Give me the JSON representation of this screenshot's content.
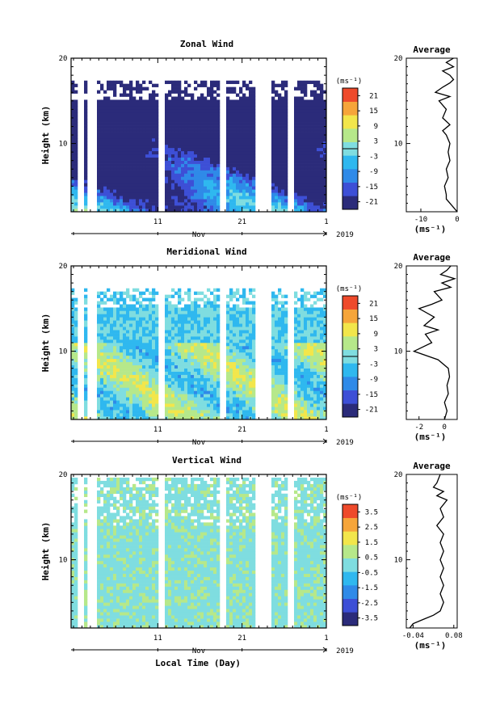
{
  "figure": {
    "xlabel": "Local Time (Day)",
    "month_label": "Nov",
    "year_label": "2019",
    "ylabel": "Height (km)",
    "unit_label": "(ms⁻¹)",
    "avg_title": "Average",
    "avg_xlabel": "(ms⁻¹)"
  },
  "chart_data": [
    {
      "type": "heatmap",
      "title": "Zonal Wind",
      "ylabel": "Height (km)",
      "ylim": [
        2,
        20
      ],
      "yticks": [
        "20",
        "10"
      ],
      "xticks": [
        "11",
        "21",
        "1"
      ],
      "xlabel": "Nov",
      "colorbar": {
        "unit": "(ms⁻¹)",
        "ticks": [
          "21",
          "15",
          "9",
          "3",
          "-3",
          "-9",
          "-15",
          "-21"
        ],
        "range": [
          -24,
          24
        ]
      },
      "colors": [
        "#2b2b7a",
        "#3d4fd6",
        "#2f8ae8",
        "#2fb8ef",
        "#7fdde0",
        "#b6e88a",
        "#f2e64b",
        "#f6a53a",
        "#ee4a2b"
      ],
      "average": {
        "title": "Average",
        "xlabel": "(ms⁻¹)",
        "xticks": [
          "-10",
          "0"
        ],
        "xlim": [
          -14,
          0
        ],
        "profile": [
          [
            0,
            2
          ],
          [
            -1,
            2.5
          ],
          [
            -2,
            3
          ],
          [
            -3,
            3.5
          ],
          [
            -3,
            4
          ],
          [
            -3.5,
            5
          ],
          [
            -2.5,
            6
          ],
          [
            -3,
            7
          ],
          [
            -2,
            8
          ],
          [
            -2.5,
            9
          ],
          [
            -2,
            10
          ],
          [
            -3,
            11
          ],
          [
            -4,
            11.5
          ],
          [
            -2,
            12.2
          ],
          [
            -4,
            13
          ],
          [
            -3,
            14
          ],
          [
            -5,
            15
          ],
          [
            -2,
            15.5
          ],
          [
            -6,
            16
          ],
          [
            -4,
            16.6
          ],
          [
            -2,
            17.1
          ],
          [
            -1,
            17.5
          ],
          [
            -2,
            18
          ],
          [
            -4,
            18.5
          ],
          [
            -1,
            19
          ],
          [
            -3,
            19.5
          ],
          [
            -1,
            20
          ]
        ]
      }
    },
    {
      "type": "heatmap",
      "title": "Meridional Wind",
      "ylabel": "Height (km)",
      "ylim": [
        2,
        20
      ],
      "yticks": [
        "20",
        "10"
      ],
      "xticks": [
        "11",
        "21",
        "1"
      ],
      "xlabel": "Nov",
      "colorbar": {
        "unit": "(ms⁻¹)",
        "ticks": [
          "21",
          "15",
          "9",
          "3",
          "-3",
          "-9",
          "-15",
          "-21"
        ],
        "range": [
          -24,
          24
        ]
      },
      "colors": [
        "#2b2b7a",
        "#3d4fd6",
        "#2f8ae8",
        "#2fb8ef",
        "#7fdde0",
        "#b6e88a",
        "#f2e64b",
        "#f6a53a",
        "#ee4a2b"
      ],
      "average": {
        "title": "Average",
        "xlabel": "(ms⁻¹)",
        "xticks": [
          "-2",
          "0"
        ],
        "xlim": [
          -3,
          1
        ],
        "profile": [
          [
            0,
            2
          ],
          [
            0.2,
            3
          ],
          [
            0,
            4
          ],
          [
            0.3,
            5
          ],
          [
            0.2,
            6
          ],
          [
            0.4,
            7
          ],
          [
            0.3,
            8
          ],
          [
            -0.5,
            9
          ],
          [
            -2.4,
            10
          ],
          [
            -1,
            11
          ],
          [
            -1.5,
            12
          ],
          [
            -0.5,
            12.5
          ],
          [
            -1.6,
            13
          ],
          [
            -0.8,
            14
          ],
          [
            -2,
            15
          ],
          [
            -1,
            15.5
          ],
          [
            -0.2,
            16
          ],
          [
            -0.8,
            17
          ],
          [
            0.5,
            17.5
          ],
          [
            -0.2,
            18
          ],
          [
            0.8,
            18.5
          ],
          [
            -0.3,
            19
          ],
          [
            0.2,
            19.5
          ],
          [
            0.5,
            20
          ]
        ]
      }
    },
    {
      "type": "heatmap",
      "title": "Vertical Wind",
      "ylabel": "Height (km)",
      "ylim": [
        2,
        20
      ],
      "yticks": [
        "20",
        "10"
      ],
      "xticks": [
        "11",
        "21",
        "1"
      ],
      "xlabel": "Nov",
      "colorbar": {
        "unit": "(ms⁻¹)",
        "ticks": [
          "3.5",
          "2.5",
          "1.5",
          "0.5",
          "-0.5",
          "-1.5",
          "-2.5",
          "-3.5"
        ],
        "range": [
          -4,
          4
        ]
      },
      "colors": [
        "#2b2b7a",
        "#3d4fd6",
        "#2f8ae8",
        "#2fb8ef",
        "#7fdde0",
        "#b6e88a",
        "#f2e64b",
        "#f6a53a",
        "#ee4a2b"
      ],
      "average": {
        "title": "Average",
        "xlabel": "(ms⁻¹)",
        "xticks": [
          "-0.04",
          "0.08"
        ],
        "xlim": [
          -0.06,
          0.09
        ],
        "profile": [
          [
            -0.05,
            2
          ],
          [
            -0.04,
            2.5
          ],
          [
            -0.01,
            3
          ],
          [
            0.02,
            3.5
          ],
          [
            0.04,
            4
          ],
          [
            0.05,
            5
          ],
          [
            0.04,
            6
          ],
          [
            0.05,
            7
          ],
          [
            0.04,
            8
          ],
          [
            0.05,
            9
          ],
          [
            0.04,
            10
          ],
          [
            0.05,
            11
          ],
          [
            0.04,
            12
          ],
          [
            0.05,
            13
          ],
          [
            0.03,
            14
          ],
          [
            0.05,
            15
          ],
          [
            0.04,
            16
          ],
          [
            0.06,
            17
          ],
          [
            0.03,
            17.5
          ],
          [
            0.05,
            18
          ],
          [
            0.02,
            18.5
          ],
          [
            0.03,
            19
          ],
          [
            0.04,
            20
          ]
        ]
      }
    }
  ]
}
